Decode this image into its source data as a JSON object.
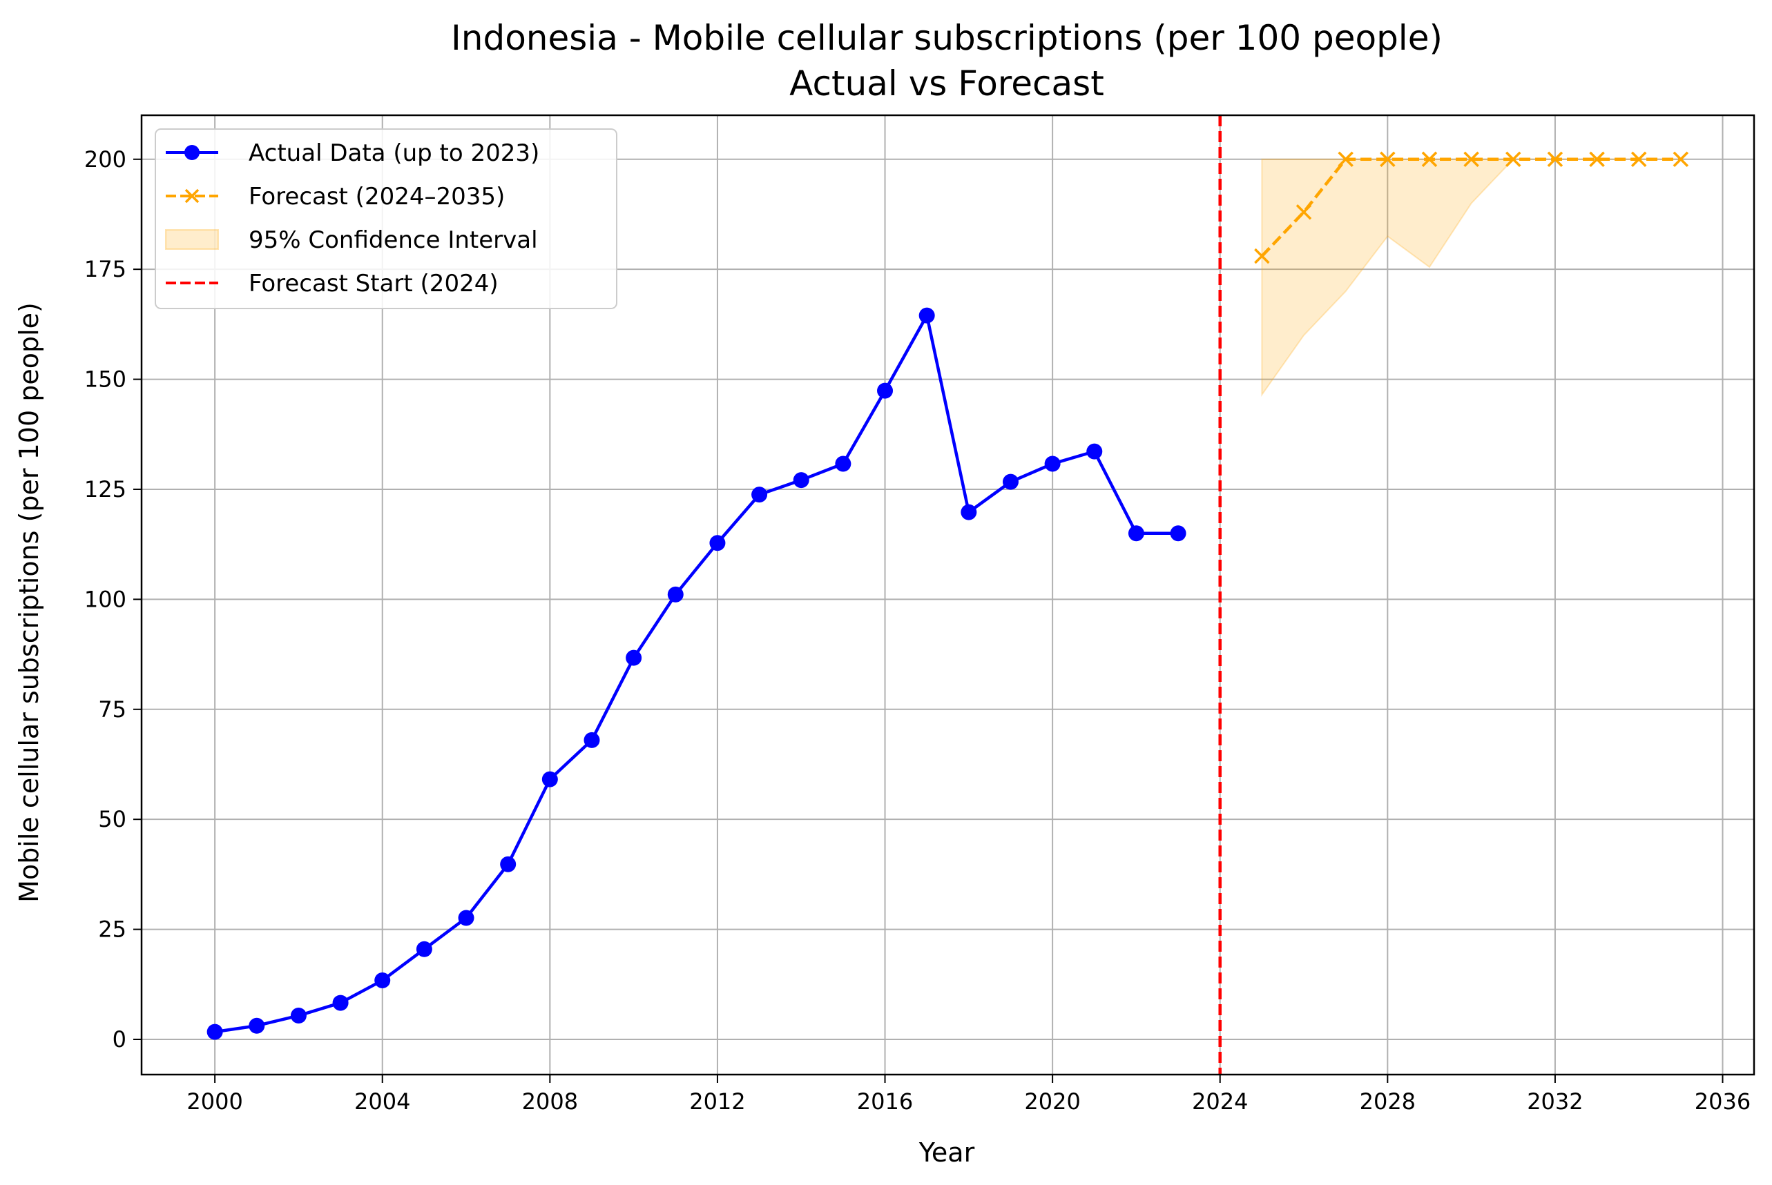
{
  "chart_data": {
    "type": "line",
    "title": "Indonesia - Mobile cellular subscriptions (per 100 people)",
    "subtitle": "Actual vs Forecast",
    "xlabel": "Year",
    "ylabel": "Mobile cellular subscriptions (per 100 people)",
    "xlim": [
      1998.25,
      2036.75
    ],
    "ylim": [
      -8,
      210
    ],
    "xticks": [
      2000,
      2004,
      2008,
      2012,
      2016,
      2020,
      2024,
      2028,
      2032,
      2036
    ],
    "yticks": [
      0,
      25,
      50,
      75,
      100,
      125,
      150,
      175,
      200
    ],
    "grid": true,
    "legend_position": "top-left",
    "series": [
      {
        "name": "Actual Data (up to 2023)",
        "style": "solid-line-circle-markers",
        "color": "#0000ff",
        "x": [
          2000,
          2001,
          2002,
          2003,
          2004,
          2005,
          2006,
          2007,
          2008,
          2009,
          2010,
          2011,
          2012,
          2013,
          2014,
          2015,
          2016,
          2017,
          2018,
          2019,
          2020,
          2021,
          2022,
          2023
        ],
        "y": [
          1.7,
          3.1,
          5.4,
          8.3,
          13.4,
          20.5,
          27.6,
          39.8,
          59.1,
          68.0,
          86.7,
          101.1,
          112.8,
          123.8,
          127.1,
          130.8,
          147.4,
          164.5,
          119.8,
          126.7,
          130.8,
          133.6,
          115.0,
          115.0
        ]
      },
      {
        "name": "Forecast (2024–2035)",
        "style": "dashed-line-x-markers",
        "color": "#ffa500",
        "x": [
          2025,
          2026,
          2027,
          2028,
          2029,
          2030,
          2031,
          2032,
          2033,
          2034,
          2035
        ],
        "y": [
          178.0,
          188.0,
          200.0,
          200.0,
          200.0,
          200.0,
          200.0,
          200.0,
          200.0,
          200.0,
          200.0
        ]
      }
    ],
    "confidence_interval": {
      "name": "95% Confidence Interval",
      "color": "#ffa500",
      "x": [
        2025,
        2026,
        2027,
        2028,
        2029,
        2030,
        2031,
        2032,
        2033,
        2034,
        2035
      ],
      "lower": [
        146.5,
        160.0,
        170.0,
        182.5,
        175.5,
        190.0,
        200.0,
        200.0,
        200.0,
        200.0,
        200.0
      ],
      "upper": [
        200.0,
        200.0,
        200.0,
        200.0,
        200.0,
        200.0,
        200.0,
        200.0,
        200.0,
        200.0,
        200.0
      ]
    },
    "vline": {
      "name": "Forecast Start (2024)",
      "x": 2024,
      "color": "#ff0000",
      "style": "dashed"
    }
  }
}
